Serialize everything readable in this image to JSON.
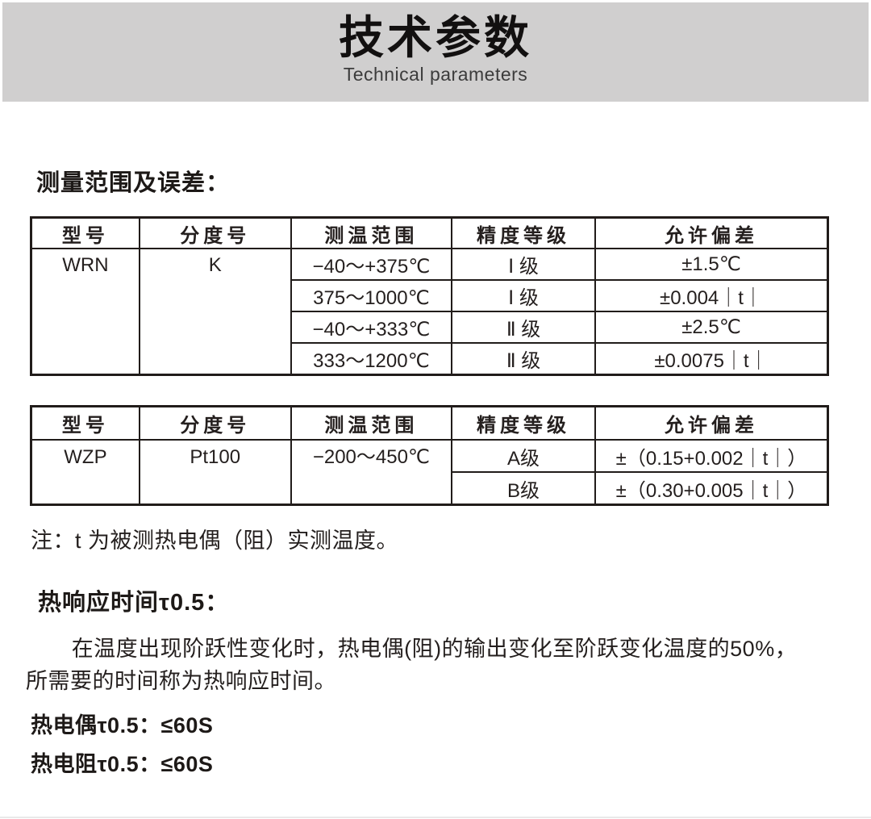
{
  "header": {
    "title_cn": "技术参数",
    "title_en": "Technical parameters"
  },
  "colors": {
    "header_band": "#d0cfcf",
    "table_border": "#211c1a",
    "text": "#241f1e"
  },
  "sections": {
    "measurement_title": "测量范围及误差：",
    "response_title": "热响应时间τ0.5：",
    "note": "注：t 为被测热电偶（阻）实测温度。",
    "response_description": "在温度出现阶跃性变化时，热电偶(阻)的输出变化至阶跃变化温度的50%，所需要的时间称为热响应时间。",
    "thermocouple_response": "热电偶τ0.5：≤60S",
    "rtd_response": "热电阻τ0.5：≤60S"
  },
  "table_wrn": {
    "headers": [
      "型号",
      "分度号",
      "测温范围",
      "精度等级",
      "允许偏差"
    ],
    "model": "WRN",
    "graduation": "K",
    "rows": [
      {
        "range": "−40～+375℃",
        "grade": "Ⅰ 级",
        "deviation": "±1.5℃"
      },
      {
        "range": "375～1000℃",
        "grade": "Ⅰ 级",
        "deviation": "±0.004｜t｜"
      },
      {
        "range": "−40～+333℃",
        "grade": "Ⅱ 级",
        "deviation": "±2.5℃"
      },
      {
        "range": "333～1200℃",
        "grade": "Ⅱ 级",
        "deviation": "±0.0075｜t｜"
      }
    ]
  },
  "table_wzp": {
    "headers": [
      "型号",
      "分度号",
      "测温范围",
      "精度等级",
      "允许偏差"
    ],
    "model": "WZP",
    "graduation": "Pt100",
    "range": "−200～450℃",
    "rows": [
      {
        "grade": "A级",
        "deviation": "±（0.15+0.002｜t｜）"
      },
      {
        "grade": "B级",
        "deviation": "±（0.30+0.005｜t｜）"
      }
    ]
  }
}
